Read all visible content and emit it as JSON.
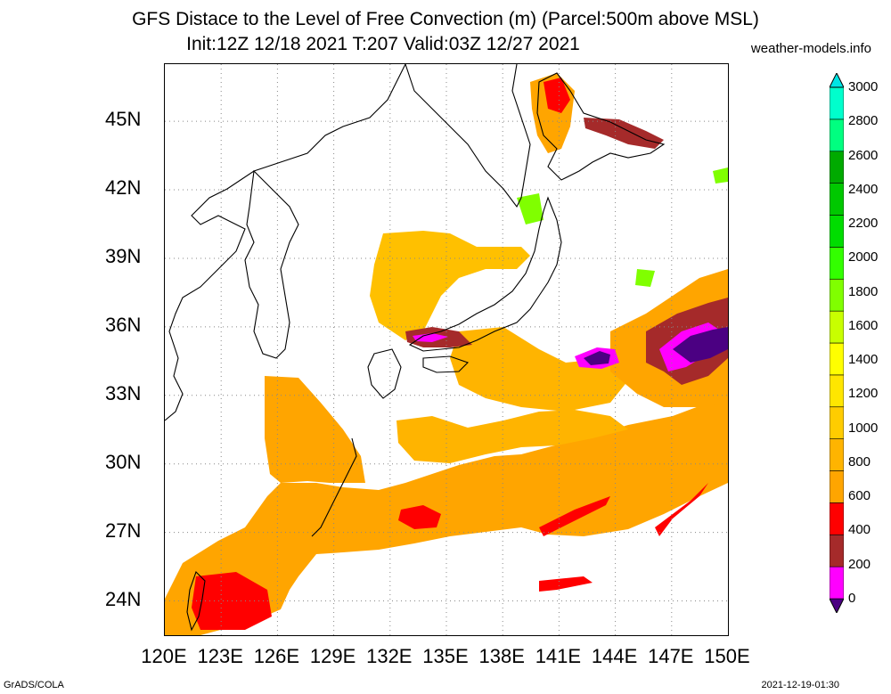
{
  "header": {
    "title_line1": "GFS Distace to the Level of Free Convection (m) (Parcel:500m above MSL)",
    "title_line2": "Init:12Z 12/18 2021 T:207 Valid:03Z 12/27 2021",
    "site": "weather-models.info"
  },
  "footer": {
    "left": "GrADS/COLA",
    "right": "2021-12-19-01:30"
  },
  "axes": {
    "lat_labels": [
      "45N",
      "42N",
      "39N",
      "36N",
      "33N",
      "30N",
      "27N",
      "24N"
    ],
    "lat_values": [
      45,
      42,
      39,
      36,
      33,
      30,
      27,
      24
    ],
    "lon_labels": [
      "120E",
      "123E",
      "126E",
      "129E",
      "132E",
      "135E",
      "138E",
      "141E",
      "144E",
      "147E",
      "150E"
    ],
    "lon_values": [
      120,
      123,
      126,
      129,
      132,
      135,
      138,
      141,
      144,
      147,
      150
    ],
    "lat_range": [
      22.5,
      47.5
    ],
    "lon_range": [
      120,
      150
    ],
    "grid": true
  },
  "colorbar": {
    "labels": [
      "3000",
      "2800",
      "2600",
      "2400",
      "2200",
      "2000",
      "1800",
      "1600",
      "1400",
      "1200",
      "1000",
      "800",
      "600",
      "400",
      "200",
      "0"
    ],
    "colors": [
      "#4b0082",
      "#ff00ff",
      "#a52a2a",
      "#ff0000",
      "#ffa500",
      "#ffb400",
      "#ffcc00",
      "#ffe600",
      "#ffff00",
      "#c8ff00",
      "#80ff00",
      "#33ff00",
      "#00dd00",
      "#00c800",
      "#00aa00",
      "#00ff80",
      "#00ffcc",
      "#00e5e5"
    ]
  },
  "colors": {
    "orange": "#ffa500",
    "light_orange": "#ffc000",
    "red": "#ff0000",
    "brown": "#a52a2a",
    "magenta": "#ff00ff",
    "purple": "#4b0082",
    "yellow": "#ffdd00",
    "green": "#80ff00"
  }
}
